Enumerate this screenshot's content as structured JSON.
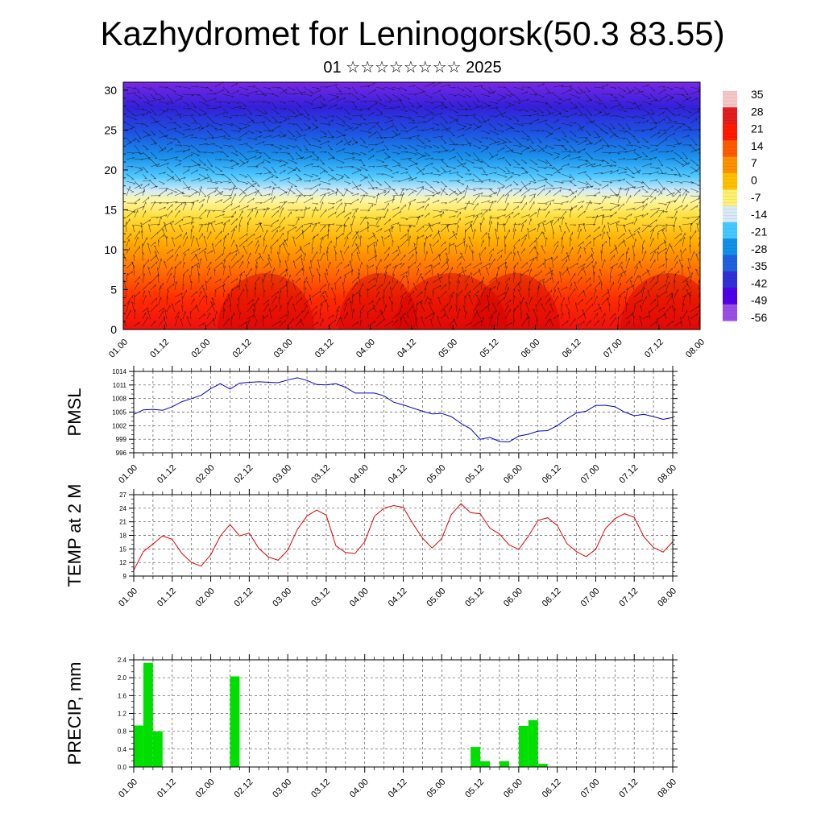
{
  "page": {
    "title": "Kazhydromet for Leninogorsk(50.3 83.55)",
    "subtitle": "01 ☆☆☆☆☆☆☆☆ 2025"
  },
  "colors": {
    "pmsl_line": "#0000cc",
    "temp_line": "#e00000",
    "precip_bar": "#00e000",
    "grid": "#555555",
    "axis": "#000000"
  },
  "chart_data": [
    {
      "type": "heatmap",
      "name": "cross-section",
      "x_ticks": [
        "01.00",
        "01.12",
        "02.00",
        "02.12",
        "03.00",
        "03.12",
        "04.00",
        "04.12",
        "05.00",
        "05.12",
        "06.00",
        "06.12",
        "07.00",
        "07.12",
        "08.00"
      ],
      "y_ticks": [
        "0",
        "5",
        "10",
        "15",
        "20",
        "25",
        "30"
      ],
      "ylim": [
        0,
        31
      ],
      "colorbar_labels": [
        "35",
        "28",
        "21",
        "14",
        "7",
        "0",
        "-7",
        "-14",
        "-21",
        "-28",
        "-35",
        "-42",
        "-49",
        "-56"
      ],
      "colorbar_stops": [
        "#f5c6c6",
        "#e21e1e",
        "#ff1a00",
        "#ff5a00",
        "#ff9000",
        "#ffc000",
        "#fff070",
        "#d8eaf5",
        "#45c8ff",
        "#1090e8",
        "#2060e0",
        "#3030d8",
        "#5000e8",
        "#9b4de6"
      ]
    },
    {
      "type": "line",
      "name": "PMSL",
      "ylabel": "PMSL",
      "ylim": [
        996,
        1014
      ],
      "y_ticks": [
        "996",
        "999",
        "1002",
        "1005",
        "1008",
        "1011",
        "1014"
      ],
      "x_ticks": [
        "01.00",
        "01.12",
        "02.00",
        "02.12",
        "03.00",
        "03.12",
        "04.00",
        "04.12",
        "05.00",
        "05.12",
        "06.00",
        "06.12",
        "07.00",
        "07.12",
        "08.00"
      ],
      "x": [
        0,
        3,
        6,
        9,
        12,
        15,
        18,
        21,
        24,
        27,
        30,
        33,
        36,
        39,
        42,
        45,
        48,
        51,
        54,
        57,
        60,
        63,
        66,
        69,
        72,
        75,
        78,
        81,
        84,
        87,
        90,
        93,
        96,
        99,
        102,
        105,
        108,
        111,
        114,
        117,
        120,
        123,
        126,
        129,
        132,
        135,
        138,
        141,
        144,
        147,
        150,
        153,
        156,
        159,
        162,
        165,
        168
      ],
      "values": [
        1004.5,
        1005.5,
        1005.6,
        1005.4,
        1006.2,
        1007.3,
        1008.0,
        1008.7,
        1010.2,
        1011.3,
        1010.1,
        1011.4,
        1011.6,
        1011.7,
        1011.6,
        1011.5,
        1012.1,
        1012.6,
        1012.0,
        1011.1,
        1011.0,
        1011.3,
        1010.5,
        1009.2,
        1009.2,
        1009.2,
        1008.6,
        1007.2,
        1006.6,
        1005.9,
        1005.2,
        1004.6,
        1004.7,
        1004.0,
        1002.5,
        1001.3,
        999.0,
        999.4,
        998.5,
        998.4,
        999.7,
        1000.1,
        1000.8,
        1000.9,
        1002.0,
        1003.5,
        1004.8,
        1005.2,
        1006.5,
        1006.5,
        1006.2,
        1005.0,
        1004.2,
        1004.5,
        1004.0,
        1003.4,
        1003.8
      ]
    },
    {
      "type": "line",
      "name": "TEMP at 2 M",
      "ylabel": "TEMP at 2 M",
      "ylim": [
        9,
        27
      ],
      "y_ticks": [
        "9",
        "12",
        "15",
        "18",
        "21",
        "24",
        "27"
      ],
      "x_ticks": [
        "01.00",
        "01.12",
        "02.00",
        "02.12",
        "03.00",
        "03.12",
        "04.00",
        "04.12",
        "05.00",
        "05.12",
        "06.00",
        "06.12",
        "07.00",
        "07.12",
        "08.00"
      ],
      "x": [
        0,
        3,
        6,
        9,
        12,
        15,
        18,
        21,
        24,
        27,
        30,
        33,
        36,
        39,
        42,
        45,
        48,
        51,
        54,
        57,
        60,
        63,
        66,
        69,
        72,
        75,
        78,
        81,
        84,
        87,
        90,
        93,
        96,
        99,
        102,
        105,
        108,
        111,
        114,
        117,
        120,
        123,
        126,
        129,
        132,
        135,
        138,
        141,
        144,
        147,
        150,
        153,
        156,
        159,
        162,
        165,
        168
      ],
      "values": [
        10.3,
        14.4,
        16.1,
        17.9,
        17.1,
        14.0,
        12.0,
        11.2,
        13.7,
        17.9,
        20.4,
        17.9,
        18.5,
        15.1,
        13.2,
        12.5,
        14.7,
        19.3,
        22.3,
        23.6,
        22.5,
        15.7,
        14.2,
        14.0,
        16.6,
        22.2,
        24.0,
        24.6,
        24.2,
        20.6,
        17.4,
        15.2,
        17.3,
        22.6,
        25.0,
        23.0,
        22.8,
        19.6,
        18.3,
        15.9,
        14.9,
        17.8,
        21.3,
        21.9,
        20.2,
        16.2,
        14.4,
        13.3,
        14.9,
        19.5,
        21.7,
        22.8,
        22.0,
        17.7,
        15.3,
        14.3,
        16.6
      ]
    },
    {
      "type": "bar",
      "name": "PRECIP, mm",
      "ylabel": "PRECIP, mm",
      "ylim": [
        0,
        2.4
      ],
      "y_ticks": [
        "0.0",
        "0.4",
        "0.8",
        "1.2",
        "1.6",
        "2.0",
        "2.4"
      ],
      "x_ticks": [
        "01.00",
        "01.12",
        "02.00",
        "02.12",
        "03.00",
        "03.12",
        "04.00",
        "04.12",
        "05.00",
        "05.12",
        "06.00",
        "06.12",
        "07.00",
        "07.12",
        "08.00"
      ],
      "bar_width_hours": 3,
      "x": [
        0,
        3,
        6,
        30,
        105,
        108,
        114,
        120,
        123,
        126
      ],
      "values": [
        0.93,
        2.33,
        0.8,
        2.03,
        0.45,
        0.13,
        0.13,
        0.92,
        1.05,
        0.07
      ]
    }
  ]
}
